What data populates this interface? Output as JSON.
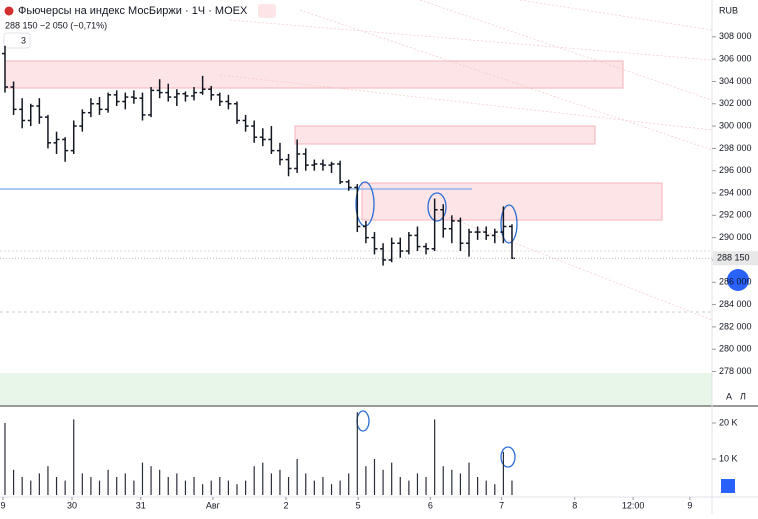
{
  "ui": {
    "currency": "RUB",
    "indicators_count": "3",
    "auto_button": "A",
    "log_button": "Л"
  },
  "chart_data": {
    "type": "ohlc",
    "title": "Фьючерсы на индекс МосБиржи · 1Ч · MOEX",
    "subtitle": "288 150  −2 050 (−0,71%)",
    "last_price_label": "288 150",
    "color": "#131722",
    "volume_color": "#2a2e39",
    "xlim": [
      -0.58,
      80.88
    ],
    "xticks": [
      {
        "value": -0.23,
        "label": "9"
      },
      {
        "value": 7.8,
        "label": "30"
      },
      {
        "value": 15.8,
        "label": "31"
      },
      {
        "value": 24.2,
        "label": "Авг"
      },
      {
        "value": 32.7,
        "label": "2"
      },
      {
        "value": 41.1,
        "label": "5"
      },
      {
        "value": 49.5,
        "label": "6"
      },
      {
        "value": 57.8,
        "label": "7"
      },
      {
        "value": 66.3,
        "label": "8"
      },
      {
        "value": 73.1,
        "label": "12:00"
      },
      {
        "value": 79.7,
        "label": "9"
      }
    ],
    "ylim": [
      275000,
      311300
    ],
    "yticks": [
      {
        "value": 278000,
        "label": "278 000"
      },
      {
        "value": 280000,
        "label": "280 000"
      },
      {
        "value": 282000,
        "label": "282 000"
      },
      {
        "value": 284000,
        "label": "284 000"
      },
      {
        "value": 286000,
        "label": "286 000"
      },
      {
        "value": 288000,
        "label": "288 000"
      },
      {
        "value": 290000,
        "label": "290 000"
      },
      {
        "value": 292000,
        "label": "292 000"
      },
      {
        "value": 294000,
        "label": "294 000"
      },
      {
        "value": 296000,
        "label": "296 000"
      },
      {
        "value": 298000,
        "label": "298 000"
      },
      {
        "value": 300000,
        "label": "300 000"
      },
      {
        "value": 302000,
        "label": "302 000"
      },
      {
        "value": 304000,
        "label": "304 000"
      },
      {
        "value": 306000,
        "label": "306 000"
      },
      {
        "value": 308000,
        "label": "308 000"
      }
    ],
    "open": [
      306500,
      303500,
      301500,
      300500,
      301800,
      300800,
      298500,
      298800,
      297800,
      300000,
      301200,
      302000,
      301500,
      302800,
      302200,
      302600,
      302500,
      301000,
      303200,
      303000,
      302600,
      302900,
      302700,
      303000,
      303300,
      302800,
      302200,
      302000,
      300500,
      300000,
      299000,
      298800,
      297800,
      297000,
      296200,
      297500,
      296500,
      296600,
      296500,
      296600,
      295000,
      294500,
      291000,
      290000,
      289000,
      288000,
      289500,
      288800,
      290200,
      289200,
      289000,
      292500,
      290800,
      291500,
      289500,
      290500,
      290500,
      290200,
      290500,
      291000
    ],
    "high": [
      307200,
      304000,
      302500,
      302000,
      302500,
      301000,
      299500,
      299000,
      300500,
      301500,
      302500,
      302600,
      303000,
      303200,
      303000,
      303200,
      303000,
      303500,
      304200,
      303800,
      303300,
      303100,
      303500,
      304500,
      303600,
      303000,
      302800,
      302200,
      301000,
      300500,
      299800,
      300000,
      298500,
      297500,
      298800,
      298000,
      297000,
      297000,
      296800,
      296900,
      295200,
      294800,
      291500,
      290500,
      289500,
      290000,
      290000,
      290500,
      291000,
      289500,
      293500,
      293000,
      292000,
      291800,
      290800,
      291000,
      291000,
      290800,
      292800,
      291200
    ],
    "low": [
      303000,
      301000,
      299800,
      300000,
      300200,
      298000,
      297500,
      296800,
      297500,
      299500,
      300800,
      301000,
      301200,
      301800,
      301500,
      302000,
      300500,
      300800,
      302500,
      302200,
      301800,
      302200,
      302300,
      302800,
      302300,
      301800,
      301500,
      300200,
      299500,
      298500,
      298200,
      297500,
      296500,
      295500,
      295800,
      296000,
      296000,
      296000,
      295800,
      294800,
      294200,
      290500,
      289500,
      288500,
      287500,
      287800,
      288200,
      288500,
      288800,
      288500,
      288800,
      290000,
      289500,
      288800,
      288300,
      289800,
      289800,
      289500,
      289500,
      288100
    ],
    "close": [
      303500,
      301500,
      300500,
      301800,
      300800,
      298500,
      298800,
      297800,
      300000,
      301200,
      302000,
      301500,
      302800,
      302200,
      302600,
      302500,
      301000,
      303200,
      303000,
      302600,
      302900,
      302700,
      303000,
      303300,
      302800,
      302200,
      302000,
      300500,
      300000,
      299000,
      298800,
      297800,
      297000,
      296200,
      297500,
      296500,
      296600,
      296500,
      296600,
      295000,
      294500,
      291000,
      290000,
      289000,
      288000,
      289500,
      288800,
      290200,
      289200,
      289000,
      292500,
      290800,
      291500,
      289500,
      290500,
      290500,
      290200,
      290500,
      291000,
      288150
    ],
    "volume": [
      20000,
      7000,
      5000,
      4000,
      6000,
      8000,
      5000,
      4000,
      21000,
      6000,
      5000,
      4000,
      7000,
      5000,
      6000,
      4000,
      9000,
      8000,
      7000,
      5000,
      6000,
      4000,
      5000,
      3000,
      4000,
      5000,
      4000,
      3000,
      4000,
      8000,
      9000,
      6000,
      7000,
      5000,
      10000,
      6000,
      4000,
      5000,
      3000,
      4000,
      6000,
      23000,
      8000,
      10000,
      7000,
      9000,
      5000,
      4000,
      6000,
      5000,
      21000,
      8000,
      7000,
      6000,
      9000,
      5000,
      4000,
      3000,
      12000,
      4000
    ],
    "volume_ylim": [
      0,
      25000
    ],
    "volume_yticks": [
      {
        "value": 10000,
        "label": "10 K"
      },
      {
        "value": 20000,
        "label": "20 K"
      }
    ]
  }
}
